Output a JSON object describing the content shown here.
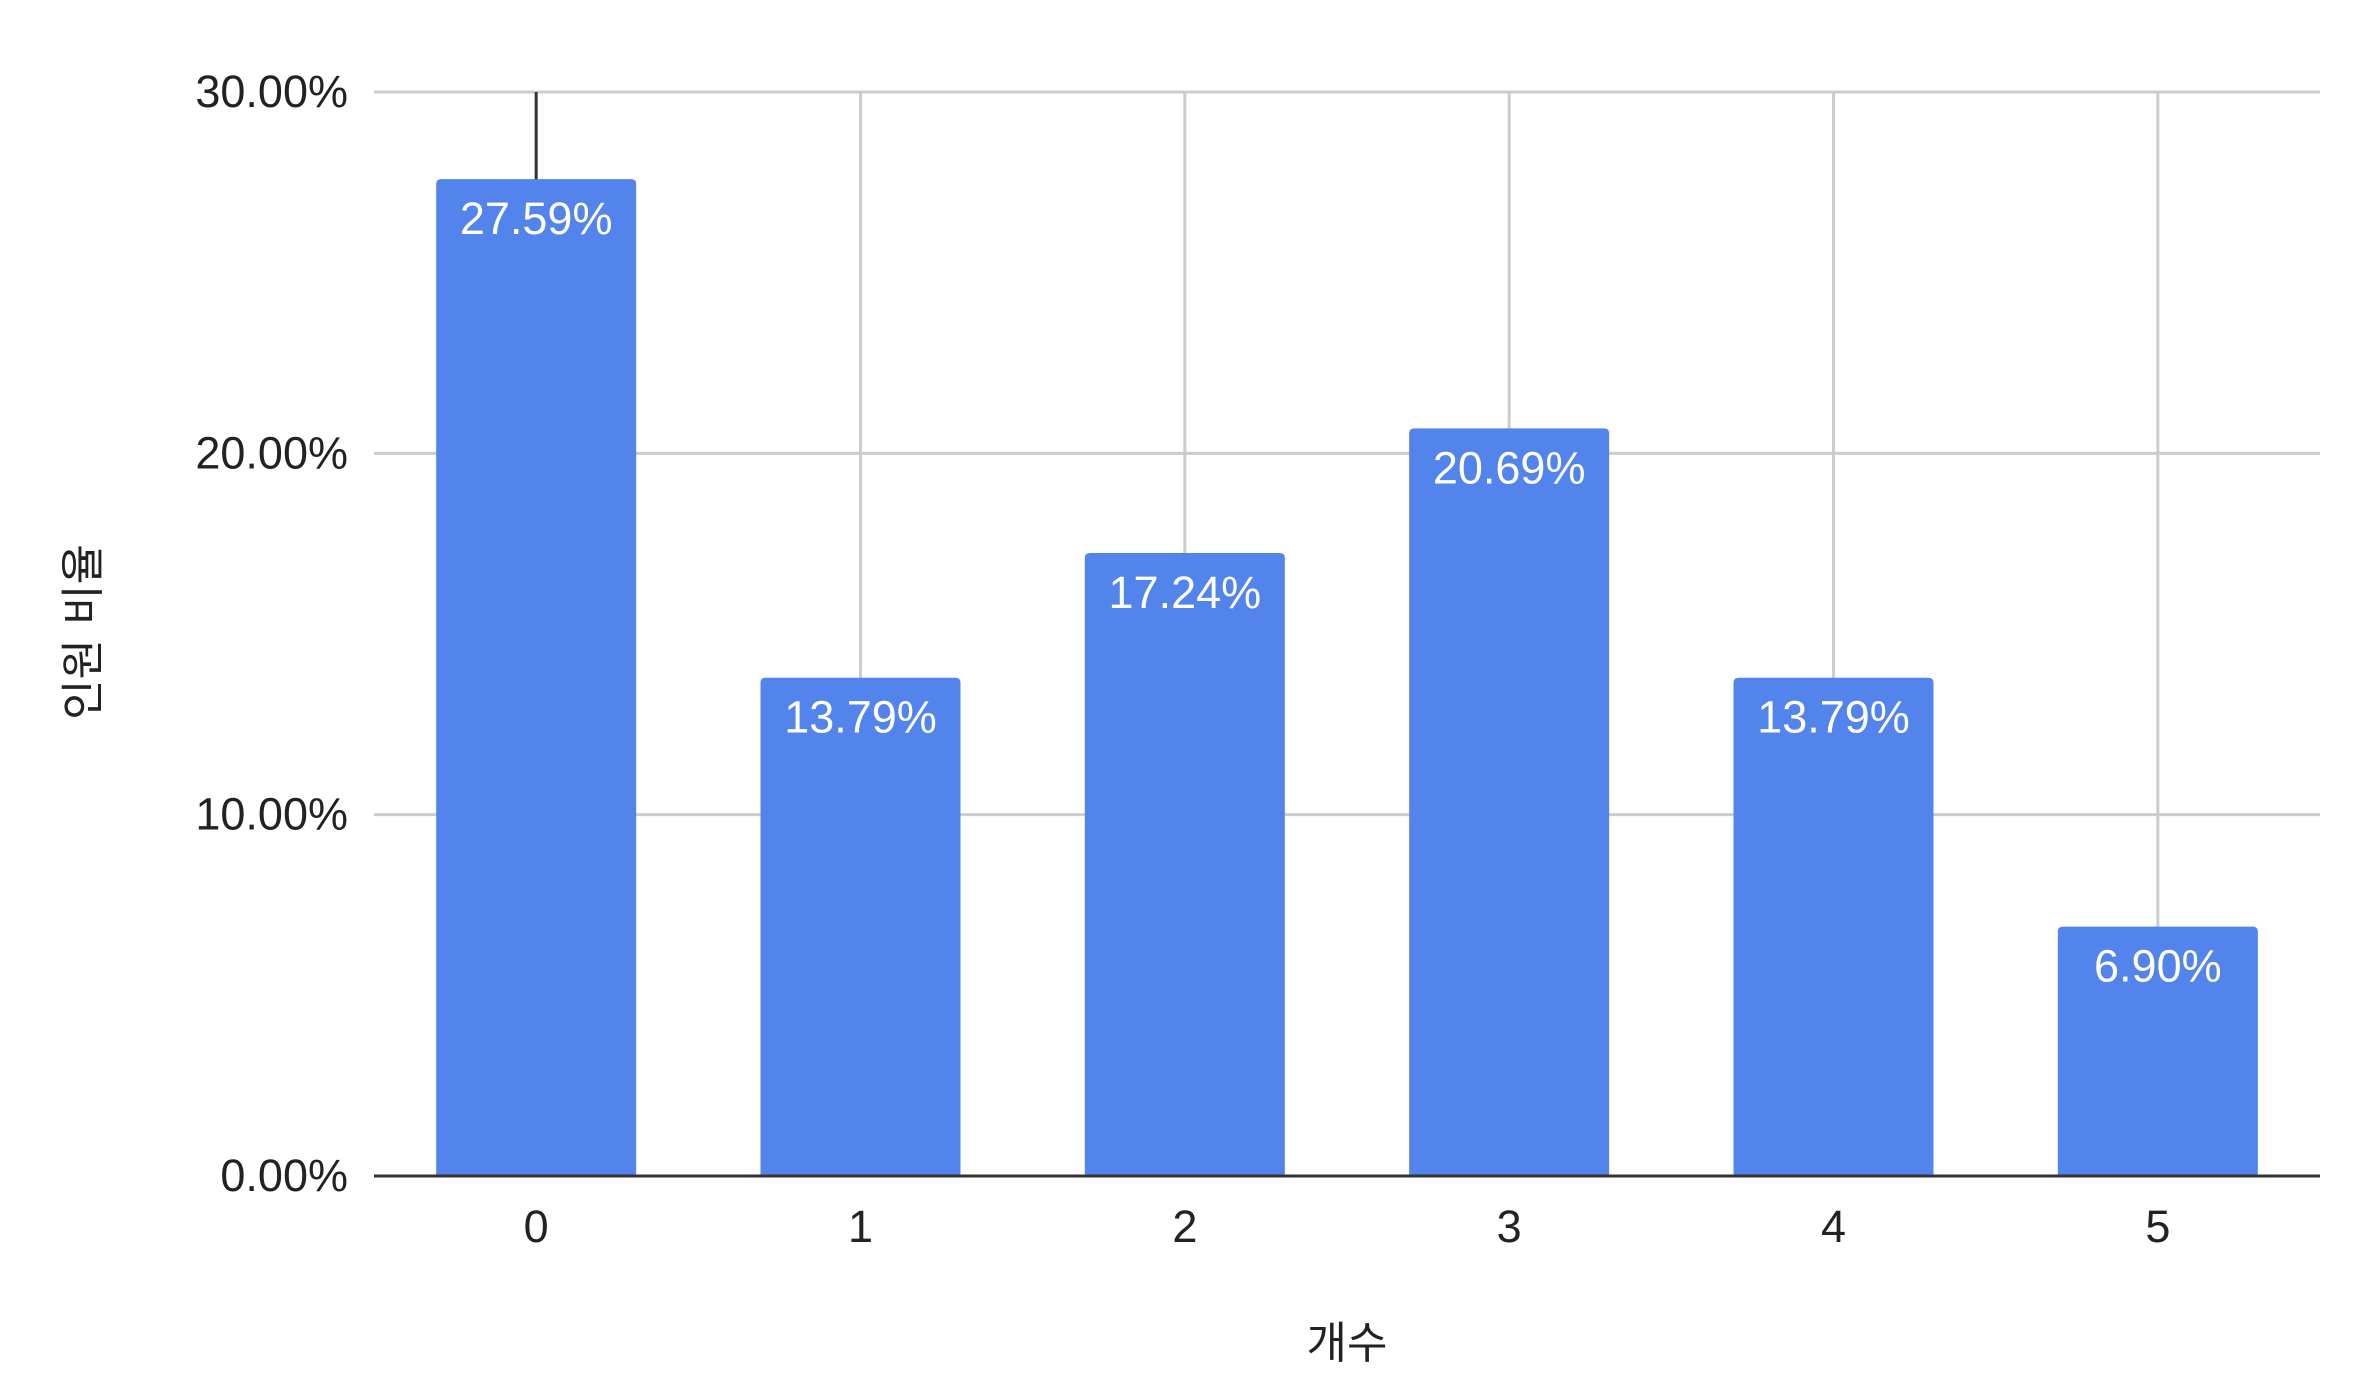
{
  "chart_data": {
    "type": "bar",
    "categories": [
      "0",
      "1",
      "2",
      "3",
      "4",
      "5"
    ],
    "values": [
      27.59,
      13.79,
      17.24,
      20.69,
      13.79,
      6.9
    ],
    "data_labels": [
      "27.59%",
      "13.79%",
      "17.24%",
      "20.69%",
      "13.79%",
      "6.90%"
    ],
    "title": "",
    "xlabel": "개수",
    "ylabel": "인원 비율",
    "ylim": [
      0,
      30
    ],
    "yticks": [
      0,
      10,
      20,
      30
    ],
    "ytick_labels": [
      "0.00%",
      "10.00%",
      "20.00%",
      "30.00%"
    ],
    "grid": true,
    "colors": {
      "bar": "#5384EC",
      "grid": "#CCCCCC",
      "axis": "#333333",
      "text": "#222222",
      "label": "#FFFFFF"
    }
  }
}
